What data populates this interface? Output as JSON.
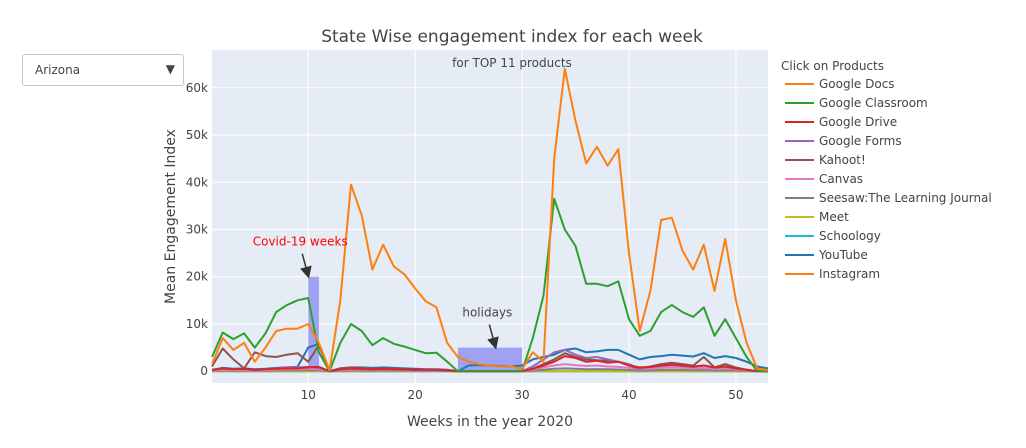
{
  "controls": {
    "dropdown": {
      "selected": "Arizona",
      "arrow_icon": "▼"
    }
  },
  "chart_data": {
    "type": "line",
    "title": "State Wise engagement index for each week",
    "subtitle": "for TOP 11 products",
    "xlabel": "Weeks in the year 2020",
    "ylabel": "Mean Engagement Index",
    "xlim": [
      1,
      53
    ],
    "ylim": [
      -2500,
      68000
    ],
    "x_ticks": [
      10,
      20,
      30,
      40,
      50
    ],
    "y_ticks": [
      0,
      10000,
      20000,
      30000,
      40000,
      50000,
      60000
    ],
    "y_tick_labels": [
      "0",
      "10k",
      "20k",
      "30k",
      "40k",
      "50k",
      "60k"
    ],
    "grid": true,
    "background_color": "#e5ecf6",
    "legend_title": "Click on Products",
    "legend_position": "right",
    "x": [
      1,
      2,
      3,
      4,
      5,
      6,
      7,
      8,
      9,
      10,
      11,
      12,
      13,
      14,
      15,
      16,
      17,
      18,
      19,
      20,
      21,
      22,
      23,
      24,
      25,
      26,
      27,
      28,
      29,
      30,
      31,
      32,
      33,
      34,
      35,
      36,
      37,
      38,
      39,
      40,
      41,
      42,
      43,
      44,
      45,
      46,
      47,
      48,
      49,
      50,
      51,
      52,
      53
    ],
    "series": [
      {
        "name": "Google Docs",
        "color": "#ff7f0e",
        "values": [
          1500,
          7000,
          4500,
          6000,
          2000,
          5000,
          8500,
          9000,
          9000,
          10000,
          6000,
          200,
          15000,
          39500,
          33000,
          21500,
          26800,
          22200,
          20500,
          17500,
          14800,
          13500,
          6000,
          3000,
          2000,
          1500,
          1200,
          1000,
          1000,
          500,
          4000,
          2000,
          45000,
          64000,
          53000,
          44000,
          47500,
          43500,
          47000,
          25000,
          8500,
          17000,
          32000,
          32500,
          25500,
          21500,
          26800,
          17000,
          28000,
          15000,
          6000,
          500,
          200
        ]
      },
      {
        "name": "Google Classroom",
        "color": "#2ca02c",
        "values": [
          3000,
          8200,
          6800,
          8000,
          5000,
          8000,
          12500,
          14000,
          15000,
          15500,
          4000,
          0,
          6000,
          10000,
          8500,
          5500,
          7000,
          5800,
          5200,
          4500,
          3800,
          3900,
          2000,
          0,
          0,
          0,
          0,
          0,
          0,
          0,
          7000,
          16000,
          36500,
          30000,
          26500,
          18500,
          18500,
          18000,
          19000,
          11000,
          7500,
          8500,
          12500,
          14000,
          12500,
          11500,
          13500,
          7500,
          11000,
          7000,
          3000,
          0,
          0
        ]
      },
      {
        "name": "Google Drive",
        "color": "#d62728",
        "values": [
          300,
          600,
          400,
          500,
          300,
          400,
          500,
          600,
          600,
          800,
          900,
          0,
          400,
          600,
          500,
          400,
          500,
          400,
          400,
          300,
          300,
          300,
          200,
          0,
          0,
          0,
          0,
          0,
          0,
          0,
          500,
          1200,
          2000,
          3200,
          2800,
          2000,
          2200,
          1800,
          2000,
          1200,
          800,
          900,
          1200,
          1400,
          1200,
          1000,
          1200,
          800,
          1000,
          600,
          300,
          0,
          0
        ]
      },
      {
        "name": "Google Forms",
        "color": "#9467bd",
        "values": [
          200,
          500,
          400,
          500,
          200,
          400,
          600,
          800,
          800,
          900,
          700,
          0,
          300,
          500,
          400,
          300,
          400,
          300,
          300,
          200,
          200,
          200,
          100,
          0,
          0,
          0,
          0,
          0,
          0,
          0,
          1000,
          2500,
          4000,
          4500,
          3500,
          2800,
          3000,
          2500,
          2000,
          1500,
          600,
          900,
          1100,
          1300,
          1100,
          900,
          1200,
          700,
          1000,
          600,
          300,
          0,
          0
        ]
      },
      {
        "name": "Kahoot!",
        "color": "#8c564b",
        "values": [
          1000,
          4800,
          2500,
          600,
          4000,
          3200,
          3000,
          3500,
          3800,
          2000,
          5500,
          0,
          600,
          800,
          700,
          500,
          600,
          500,
          400,
          300,
          300,
          300,
          200,
          0,
          0,
          0,
          0,
          0,
          0,
          0,
          500,
          1500,
          2500,
          3800,
          3000,
          2500,
          2300,
          2200,
          2000,
          1200,
          500,
          1000,
          1500,
          1800,
          1500,
          1200,
          3000,
          800,
          1500,
          800,
          300,
          0,
          0
        ]
      },
      {
        "name": "Canvas",
        "color": "#e377c2",
        "values": [
          100,
          300,
          200,
          300,
          100,
          200,
          300,
          400,
          400,
          500,
          400,
          0,
          200,
          300,
          300,
          200,
          300,
          200,
          200,
          100,
          100,
          100,
          100,
          0,
          0,
          0,
          0,
          0,
          0,
          0,
          300,
          800,
          1200,
          1500,
          1300,
          1100,
          1200,
          1000,
          900,
          700,
          400,
          500,
          700,
          800,
          700,
          600,
          700,
          400,
          600,
          400,
          200,
          0,
          0
        ]
      },
      {
        "name": "Seesaw:The Learning Journal",
        "color": "#7f7f7f",
        "values": [
          50,
          150,
          100,
          150,
          50,
          100,
          150,
          200,
          200,
          250,
          200,
          0,
          100,
          150,
          150,
          100,
          150,
          100,
          100,
          50,
          50,
          50,
          50,
          0,
          0,
          0,
          0,
          0,
          0,
          0,
          100,
          300,
          500,
          600,
          500,
          400,
          450,
          400,
          350,
          250,
          150,
          200,
          250,
          300,
          250,
          200,
          250,
          150,
          200,
          150,
          80,
          0,
          0
        ]
      },
      {
        "name": "Meet",
        "color": "#bcbd22",
        "values": [
          0,
          0,
          0,
          0,
          0,
          0,
          0,
          0,
          0,
          0,
          0,
          0,
          0,
          0,
          0,
          0,
          0,
          0,
          0,
          0,
          0,
          0,
          0,
          0,
          0,
          0,
          0,
          0,
          0,
          0,
          0,
          0,
          0,
          0,
          0,
          0,
          0,
          0,
          0,
          0,
          0,
          0,
          0,
          0,
          0,
          0,
          0,
          0,
          0,
          0,
          0,
          0,
          0
        ]
      },
      {
        "name": "Schoology",
        "color": "#17becf",
        "values": [
          0,
          0,
          0,
          0,
          0,
          0,
          0,
          0,
          0,
          0,
          0,
          0,
          0,
          0,
          0,
          0,
          0,
          0,
          0,
          0,
          0,
          0,
          0,
          0,
          0,
          0,
          0,
          0,
          0,
          0,
          0,
          0,
          0,
          0,
          0,
          0,
          0,
          0,
          0,
          0,
          0,
          0,
          0,
          0,
          0,
          0,
          0,
          0,
          0,
          0,
          0,
          0,
          0
        ]
      },
      {
        "name": "YouTube",
        "color": "#1f77b4",
        "values": [
          300,
          700,
          500,
          600,
          400,
          500,
          700,
          800,
          900,
          5000,
          5800,
          0,
          600,
          800,
          800,
          700,
          800,
          700,
          600,
          500,
          400,
          400,
          300,
          0,
          1200,
          1300,
          1200,
          1100,
          1000,
          1200,
          2500,
          3000,
          3500,
          4500,
          4800,
          4000,
          4200,
          4500,
          4500,
          3500,
          2500,
          3000,
          3200,
          3500,
          3300,
          3100,
          3800,
          2800,
          3200,
          2800,
          2000,
          1000,
          600
        ]
      },
      {
        "name": "Instagram",
        "color": "#ff7f0e",
        "values": [
          0,
          0,
          0,
          0,
          0,
          0,
          0,
          0,
          0,
          0,
          0,
          0,
          0,
          0,
          0,
          0,
          0,
          0,
          0,
          0,
          0,
          0,
          0,
          0,
          0,
          0,
          0,
          0,
          0,
          0,
          0,
          0,
          0,
          0,
          0,
          0,
          0,
          0,
          0,
          0,
          0,
          0,
          0,
          0,
          0,
          0,
          0,
          0,
          0,
          0,
          0,
          0,
          0
        ]
      }
    ],
    "shaded_regions": [
      {
        "x0": 10,
        "x1": 11,
        "y0": 0,
        "y1": 20000,
        "color": "#6f6ff0"
      },
      {
        "x0": 24,
        "x1": 30,
        "y0": 0,
        "y1": 5000,
        "color": "#6f6ff0"
      }
    ],
    "annotations": [
      {
        "text": "Covid-19 weeks",
        "x": 10,
        "y": 20000,
        "color": "#ff0000"
      },
      {
        "text": "holidays",
        "x": 27.5,
        "y": 5000,
        "color": "#444444"
      }
    ]
  }
}
